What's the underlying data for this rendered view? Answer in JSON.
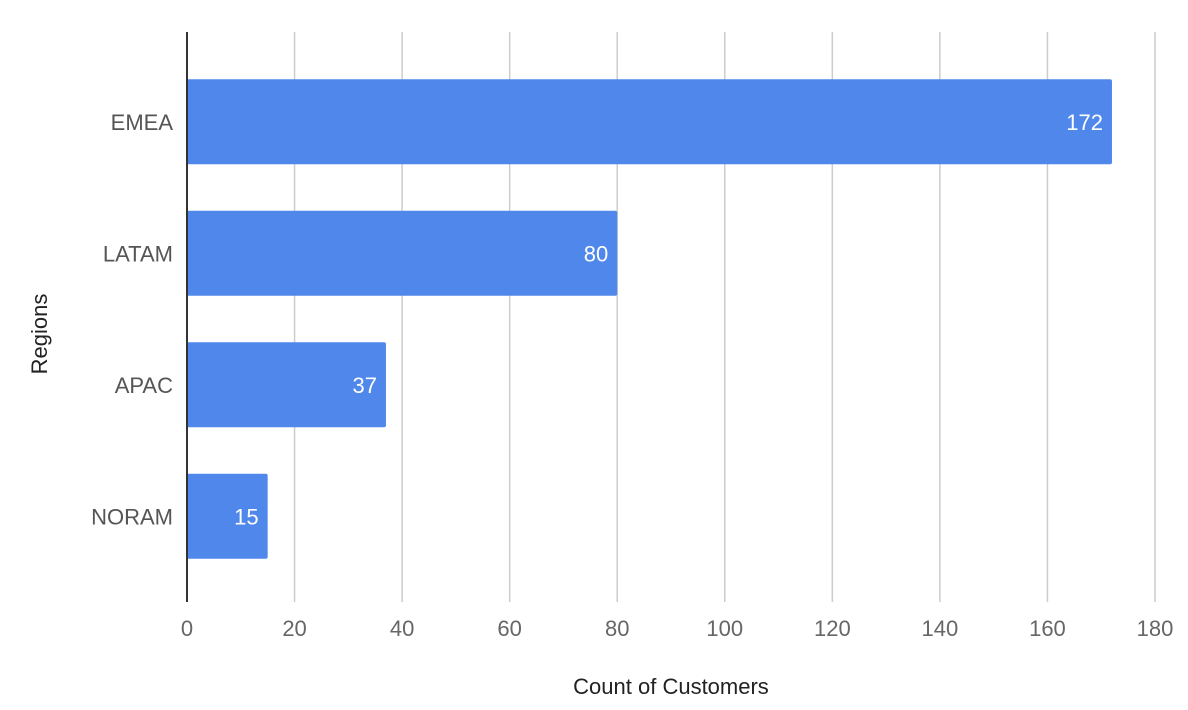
{
  "chart_data": {
    "type": "bar",
    "orientation": "horizontal",
    "categories": [
      "EMEA",
      "LATAM",
      "APAC",
      "NORAM"
    ],
    "values": [
      172,
      80,
      37,
      15
    ],
    "xlabel": "Count of Customers",
    "ylabel": "Regions",
    "xlim": [
      0,
      180
    ],
    "xticks": [
      0,
      20,
      40,
      60,
      80,
      100,
      120,
      140,
      160,
      180
    ],
    "grid": "vertical",
    "bar_color": "#5087EB",
    "data_labels": true
  }
}
